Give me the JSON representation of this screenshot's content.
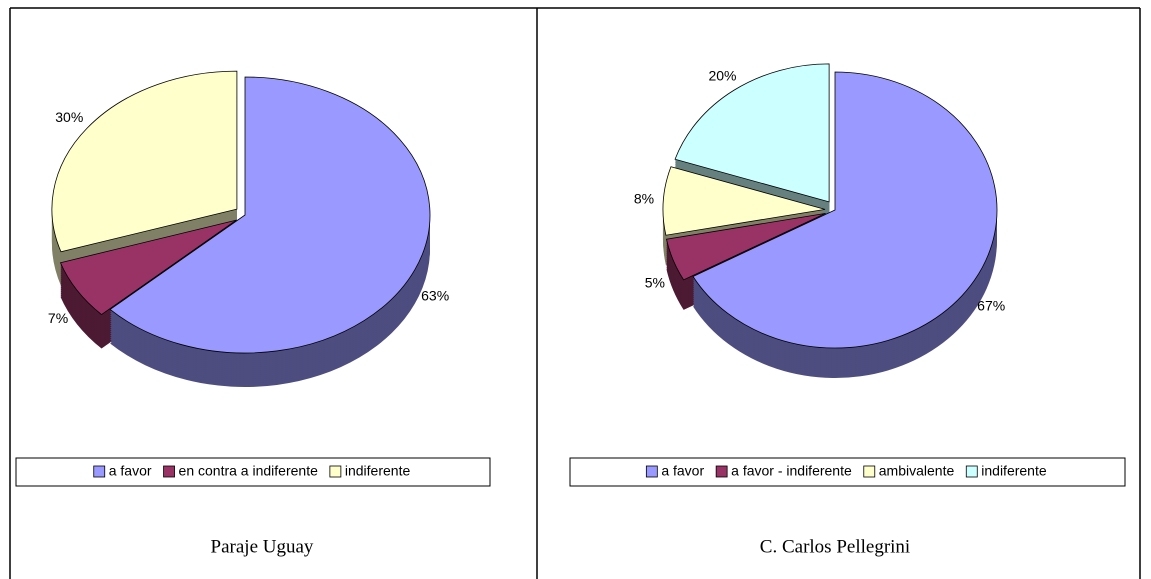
{
  "chart_data": [
    {
      "type": "pie",
      "caption": "Paraje Uguay",
      "categories": [
        "a favor",
        "en contra a indiferente",
        "indiferente"
      ],
      "values": [
        63,
        7,
        30
      ],
      "value_labels": [
        "63%",
        "7%",
        "30%"
      ],
      "colors": [
        "#9999ff",
        "#993366",
        "#ffffcc"
      ]
    },
    {
      "type": "pie",
      "caption": "C. Carlos Pellegrini",
      "categories": [
        "a favor",
        "a favor - indiferente",
        "ambivalente",
        "indiferente"
      ],
      "values": [
        67,
        5,
        8,
        20
      ],
      "value_labels": [
        "67%",
        "5%",
        "8%",
        "20%"
      ],
      "colors": [
        "#9999ff",
        "#993366",
        "#ffffcc",
        "#ccffff"
      ]
    }
  ]
}
